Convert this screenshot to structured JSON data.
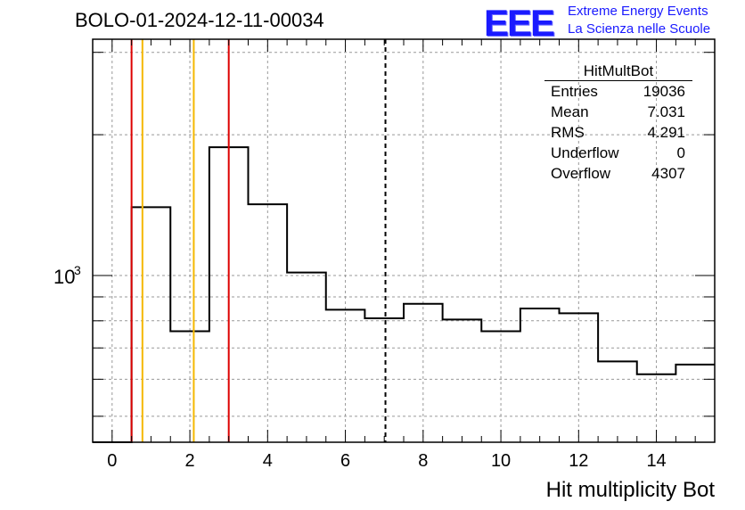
{
  "header": {
    "run_title": "BOLO-01-2024-12-11-00034",
    "logo_text": "EEE",
    "logo_line1": "Extreme Energy Events",
    "logo_line2": "La Scienza nelle Scuole"
  },
  "stats": {
    "title": "HitMultBot",
    "rows": [
      {
        "label": "Entries",
        "value": "19036"
      },
      {
        "label": "Mean",
        "value": "7.031"
      },
      {
        "label": "RMS",
        "value": "4.291"
      },
      {
        "label": "Underflow",
        "value": "0"
      },
      {
        "label": "Overflow",
        "value": "4307"
      }
    ]
  },
  "chart_data": {
    "type": "histogram",
    "xlabel": "Hit multiplicity Bot",
    "ylabel": "",
    "xlim": [
      -0.5,
      15.5
    ],
    "ylim": [
      440,
      3200
    ],
    "log_y": true,
    "grid": true,
    "x_ticks": [
      0,
      2,
      4,
      6,
      8,
      10,
      12,
      14
    ],
    "y_tick_label": "10^3",
    "bin_edges": [
      -0.5,
      0.5,
      1.5,
      2.5,
      3.5,
      4.5,
      5.5,
      6.5,
      7.5,
      8.5,
      9.5,
      10.5,
      11.5,
      12.5,
      13.5,
      14.5,
      15.5
    ],
    "values": [
      0,
      1400,
      760,
      1880,
      1420,
      1015,
      845,
      810,
      870,
      805,
      760,
      850,
      830,
      655,
      615,
      645
    ],
    "vertical_lines": [
      {
        "x": 0.5,
        "color": "#dd0000",
        "style": "solid"
      },
      {
        "x": 0.78,
        "color": "#f5b800",
        "style": "solid"
      },
      {
        "x": 2.1,
        "color": "#f5b800",
        "style": "solid"
      },
      {
        "x": 3.0,
        "color": "#dd0000",
        "style": "solid"
      },
      {
        "x": 7.031,
        "color": "#000000",
        "style": "dashed"
      }
    ]
  }
}
